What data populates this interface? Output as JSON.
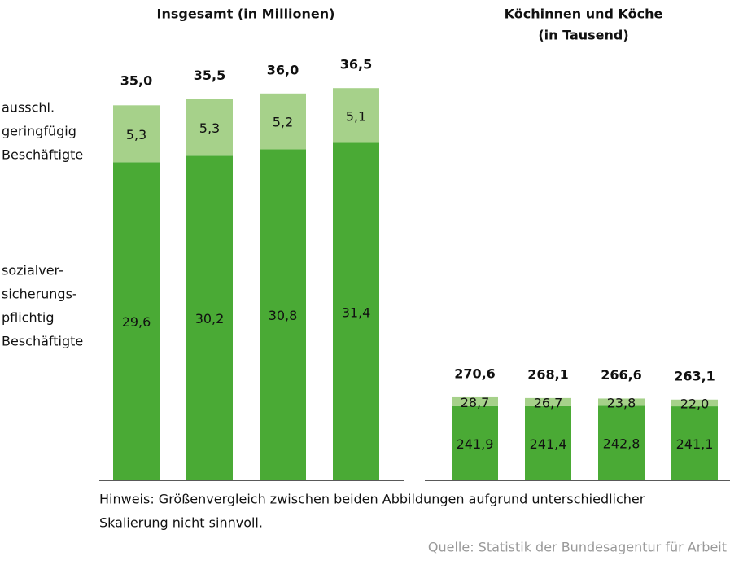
{
  "chart_data": [
    {
      "type": "bar",
      "stacked": true,
      "title": [
        "Insgesamt (in Millionen)"
      ],
      "categories": [
        null,
        null,
        null,
        null
      ],
      "ylim": [
        0,
        40
      ],
      "series": [
        {
          "name": [
            "sozialver-",
            "sicherungs-",
            "pflichtig",
            "Beschäftigte"
          ],
          "color": "#4aaa35",
          "values": [
            29.6,
            30.2,
            30.8,
            31.4
          ],
          "value_labels": [
            "29,6",
            "30,2",
            "30,8",
            "31,4"
          ]
        },
        {
          "name": [
            "ausschl.",
            "geringfügig",
            "Beschäftigte"
          ],
          "color": "#a6d18a",
          "values": [
            5.3,
            5.3,
            5.2,
            5.1
          ],
          "value_labels": [
            "5,3",
            "5,3",
            "5,2",
            "5,1"
          ]
        }
      ],
      "totals": [
        35.0,
        35.5,
        36.0,
        36.5
      ],
      "total_labels": [
        "35,0",
        "35,5",
        "36,0",
        "36,5"
      ]
    },
    {
      "type": "bar",
      "stacked": true,
      "title": [
        "Köchinnen und Köche",
        "(in Tausend)"
      ],
      "categories": [
        null,
        null,
        null,
        null
      ],
      "ylim": [
        0,
        1400
      ],
      "series": [
        {
          "color": "#4aaa35",
          "values": [
            241.9,
            241.4,
            242.8,
            241.1
          ],
          "value_labels": [
            "241,9",
            "241,4",
            "242,8",
            "241,1"
          ]
        },
        {
          "color": "#a6d18a",
          "values": [
            28.7,
            26.7,
            23.8,
            22.0
          ],
          "value_labels": [
            "28,7",
            "26,7",
            "23,8",
            "22,0"
          ]
        }
      ],
      "totals": [
        270.6,
        268.1,
        266.6,
        263.1
      ],
      "total_labels": [
        "270,6",
        "268,1",
        "266,6",
        "263,1"
      ]
    }
  ],
  "note": [
    "Hinweis: Größenvergleich zwischen beiden Abbildungen aufgrund unterschiedlicher",
    "Skalierung nicht sinnvoll."
  ],
  "source": "Quelle: Statistik der Bundesagentur für Arbeit"
}
